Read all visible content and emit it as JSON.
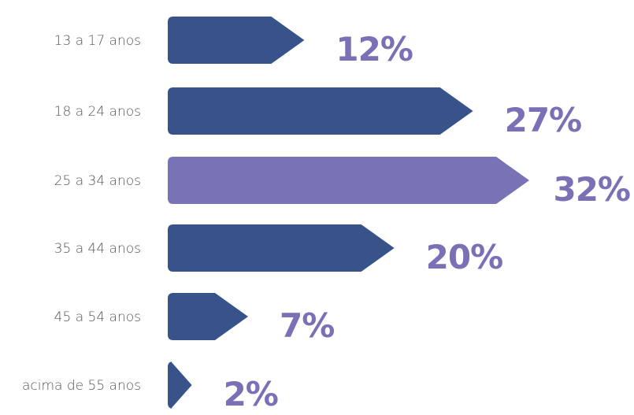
{
  "chart_data": {
    "type": "bar",
    "orientation": "horizontal",
    "title": "",
    "xlabel": "",
    "ylabel": "",
    "categories": [
      "13 a 17 anos",
      "18 a 24 anos",
      "25 a 34 anos",
      "35 a 44 anos",
      "45 a 54 anos",
      "acima de 55 anos"
    ],
    "values": [
      12,
      27,
      32,
      20,
      7,
      2
    ],
    "value_labels": [
      "12%",
      "27%",
      "32%",
      "20%",
      "7%",
      "2%"
    ],
    "xlim": [
      0,
      32
    ],
    "grid": false,
    "legend": "none",
    "highlight_category": "25 a 34 anos",
    "colors": {
      "bar": "#38538a",
      "highlight": "#7873b5",
      "value_text": "#7a70b5",
      "category_text": "#555555"
    }
  }
}
